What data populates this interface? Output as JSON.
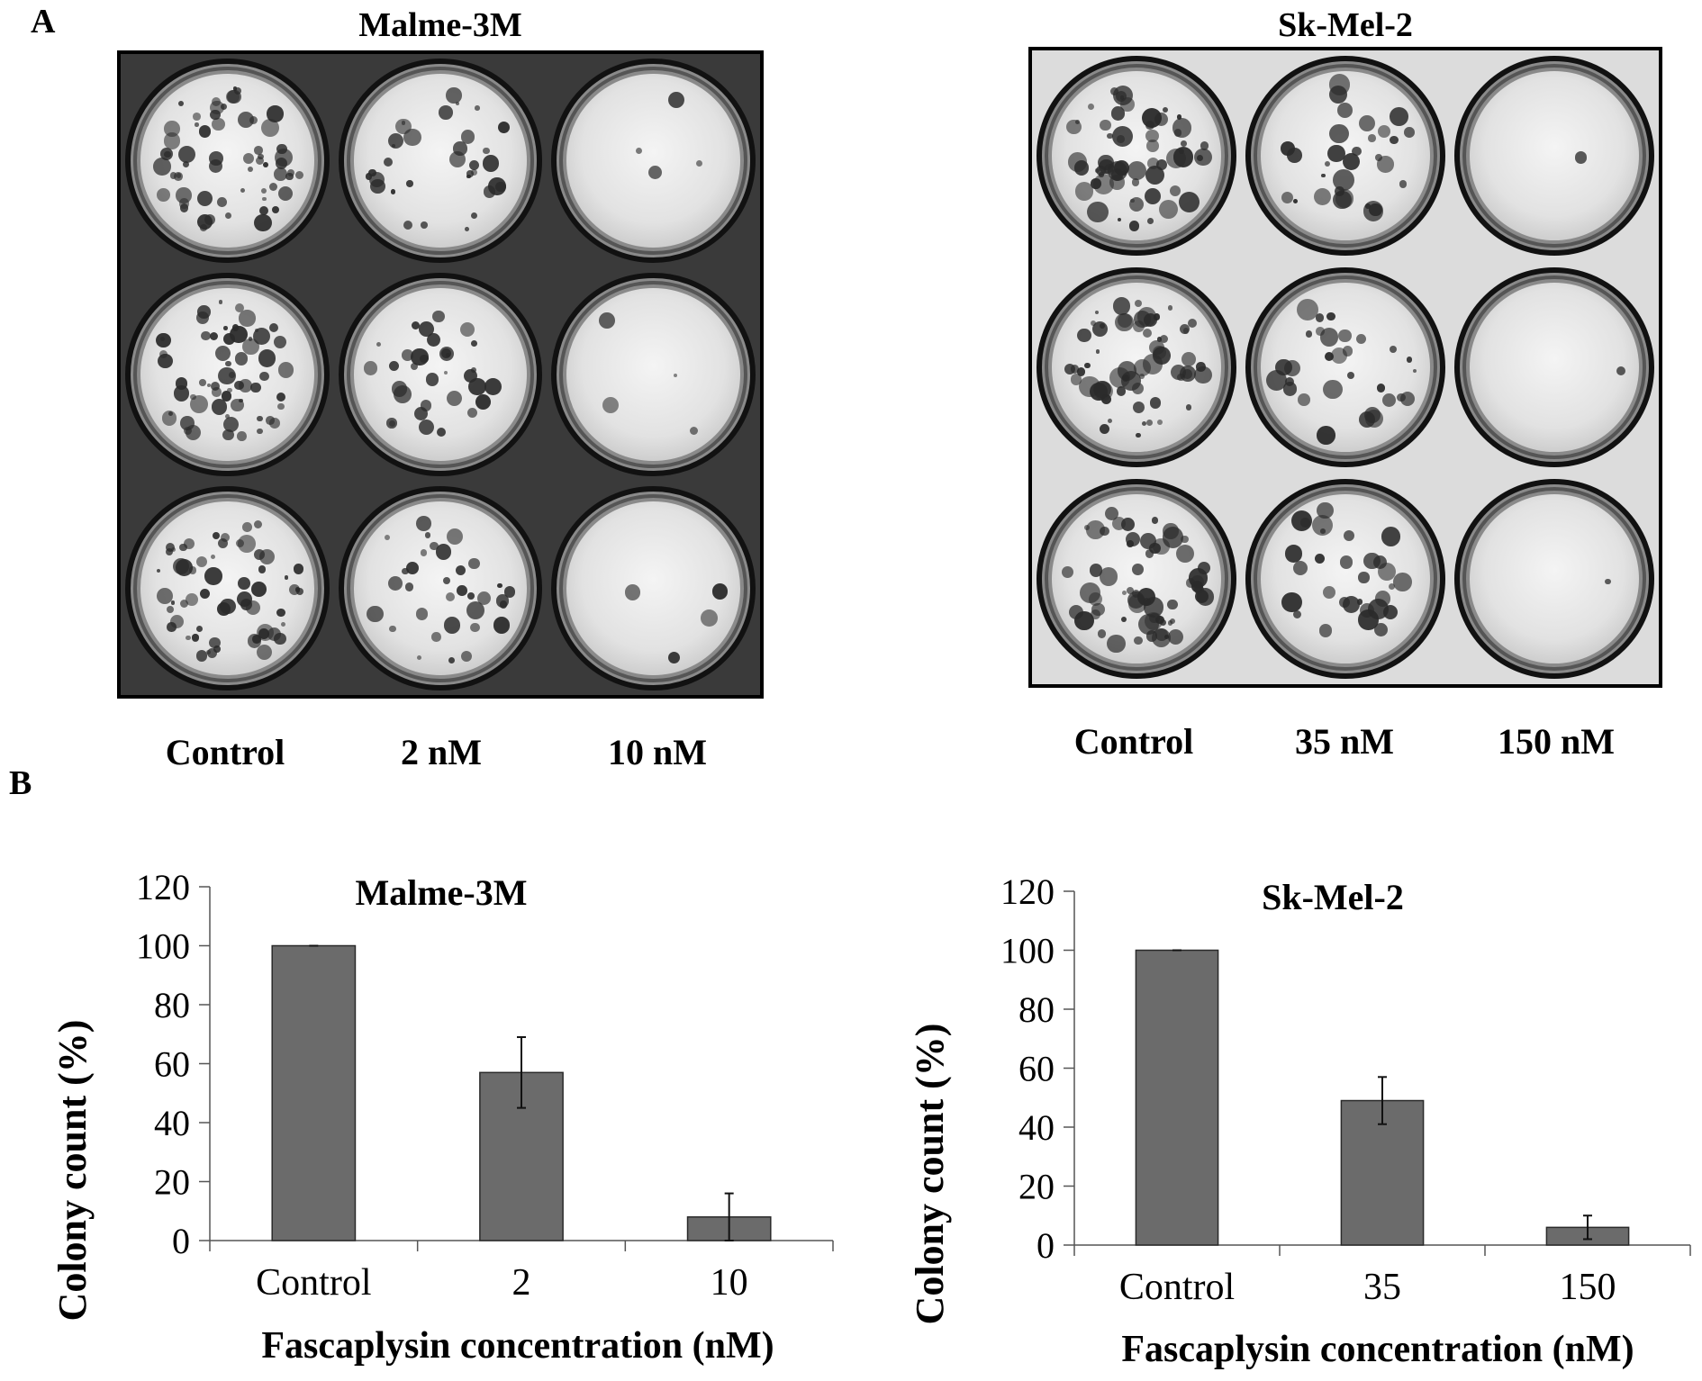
{
  "panels": {
    "a_label": "A",
    "b_label": "B"
  },
  "plates": [
    {
      "title": "Malme-3M",
      "conditions": [
        "Control",
        "2 nM",
        "10 nM"
      ],
      "density": [
        1.0,
        0.55,
        0.06
      ]
    },
    {
      "title": "Sk-Mel-2",
      "conditions": [
        "Control",
        "35 nM",
        "150 nM"
      ],
      "density": [
        1.0,
        0.5,
        0.02
      ]
    }
  ],
  "colors": {
    "bar_fill": "#6b6b6b",
    "bar_stroke": "#2a2a2a"
  },
  "chart_data": [
    {
      "type": "bar",
      "title": "Malme-3M",
      "xlabel": "Fascaplysin concentration (nM)",
      "ylabel": "Colony count (%)",
      "categories": [
        "Control",
        "2",
        "10"
      ],
      "values": [
        100,
        57,
        8
      ],
      "errors": [
        0,
        12,
        8
      ],
      "ylim": [
        0,
        120
      ],
      "yticks": [
        0,
        20,
        40,
        60,
        80,
        100,
        120
      ],
      "grid": false
    },
    {
      "type": "bar",
      "title": "Sk-Mel-2",
      "xlabel": "Fascaplysin concentration (nM)",
      "ylabel": "Colony count (%)",
      "categories": [
        "Control",
        "35",
        "150"
      ],
      "values": [
        100,
        49,
        6
      ],
      "errors": [
        0,
        8,
        4
      ],
      "ylim": [
        0,
        120
      ],
      "yticks": [
        0,
        20,
        40,
        60,
        80,
        100,
        120
      ],
      "grid": false
    }
  ]
}
